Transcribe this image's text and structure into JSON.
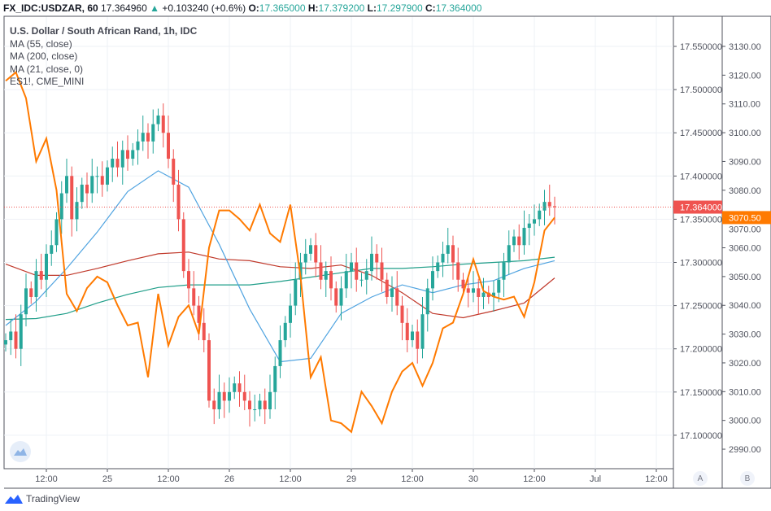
{
  "header": {
    "symbol": "FX_IDC:USDZAR, 60",
    "last": "17.364960",
    "change_arrow": "▲",
    "change": "+0.103240 (+0.6%)",
    "o_label": "O:",
    "o": "17.365000",
    "h_label": "H:",
    "h": "17.379200",
    "l_label": "L:",
    "l": "17.297900",
    "c_label": "C:",
    "c": "17.364000"
  },
  "legend": [
    "U.S. Dollar / South African Rand, 1h, IDC",
    "MA (55, close)",
    "MA (200, close)",
    "MA (21, close, 0)",
    "ES1!, CME_MINI"
  ],
  "scale_buttons": {
    "a": "A",
    "b": "B"
  },
  "footer": {
    "brand": "TradingView"
  },
  "colors": {
    "up": "#26a69a",
    "down": "#ef5350",
    "ma21": "#4fa3e0",
    "ma55": "#c0392b",
    "ma200": "#1f9e89",
    "es": "#ff7a00",
    "grid": "#eef1f6"
  },
  "chart_data": {
    "type": "candlestick",
    "symbol": "FX_IDC:USDZAR",
    "interval": "1h",
    "time_start": "Jun 24 04:00",
    "time_step_hours": 1,
    "x_ticks": [
      "12:00",
      "25",
      "12:00",
      "26",
      "12:00",
      "29",
      "12:00",
      "30",
      "12:00",
      "Jul",
      "12:00"
    ],
    "y_left_ticks": [
      "17.550000",
      "17.500000",
      "17.450000",
      "17.400000",
      "17.350000",
      "17.300000",
      "17.250000",
      "17.200000",
      "17.150000",
      "17.100000"
    ],
    "y_left_range": [
      17.08,
      17.57
    ],
    "y_right_ticks": [
      "3130.00",
      "3120.00",
      "3110.00",
      "3100.00",
      "3090.00",
      "3080.00",
      "3070.00",
      "3060.00",
      "3050.00",
      "3040.00",
      "3030.00",
      "3020.00",
      "3010.00",
      "3000.00",
      "2990.00"
    ],
    "y_right_range": [
      2985,
      3135
    ],
    "last_price_label": "17.364000",
    "es_last_label": "3070.50",
    "closes": [
      17.21,
      17.22,
      17.2,
      17.24,
      17.27,
      17.26,
      17.29,
      17.28,
      17.31,
      17.32,
      17.35,
      17.38,
      17.4,
      17.35,
      17.37,
      17.39,
      17.38,
      17.4,
      17.4,
      17.39,
      17.41,
      17.42,
      17.41,
      17.43,
      17.42,
      17.43,
      17.44,
      17.45,
      17.44,
      17.46,
      17.47,
      17.45,
      17.42,
      17.39,
      17.35,
      17.29,
      17.27,
      17.25,
      17.23,
      17.21,
      17.14,
      17.13,
      17.15,
      17.14,
      17.15,
      17.16,
      17.15,
      17.14,
      17.13,
      17.13,
      17.14,
      17.13,
      17.15,
      17.18,
      17.21,
      17.23,
      17.25,
      17.28,
      17.3,
      17.31,
      17.32,
      17.3,
      17.28,
      17.29,
      17.27,
      17.25,
      17.27,
      17.29,
      17.3,
      17.28,
      17.28,
      17.29,
      17.31,
      17.3,
      17.28,
      17.26,
      17.27,
      17.25,
      17.23,
      17.21,
      17.22,
      17.2,
      17.24,
      17.27,
      17.29,
      17.3,
      17.31,
      17.32,
      17.3,
      17.28,
      17.27,
      17.265,
      17.27,
      17.26,
      17.265,
      17.26,
      17.265,
      17.28,
      17.3,
      17.32,
      17.33,
      17.32,
      17.34,
      17.345,
      17.35,
      17.36,
      17.37,
      17.365,
      17.364
    ],
    "series": [
      {
        "name": "MA (21, close, 0)",
        "step_hours": 6,
        "values": [
          17.227,
          17.255,
          17.293,
          17.335,
          17.382,
          17.406,
          17.387,
          17.321,
          17.246,
          17.185,
          17.189,
          17.241,
          17.26,
          17.274,
          17.265,
          17.274,
          17.279,
          17.293,
          17.302
        ]
      },
      {
        "name": "MA (55, close)",
        "step_hours": 6,
        "values": [
          17.298,
          17.285,
          17.285,
          17.293,
          17.302,
          17.31,
          17.312,
          17.304,
          17.302,
          17.295,
          17.293,
          17.297,
          17.285,
          17.265,
          17.241,
          17.236,
          17.244,
          17.253,
          17.282
        ]
      },
      {
        "name": "MA (200, close)",
        "step_hours": 6,
        "values": [
          17.234,
          17.235,
          17.241,
          17.253,
          17.263,
          17.271,
          17.274,
          17.274,
          17.274,
          17.278,
          17.283,
          17.288,
          17.293,
          17.293,
          17.295,
          17.298,
          17.3,
          17.302,
          17.306
        ]
      },
      {
        "name": "ES1!, CME_MINI",
        "axis": "right",
        "step_hours": 2,
        "values": [
          3118,
          3121,
          3112,
          3090,
          3098,
          3080,
          3044,
          3038,
          3046,
          3050,
          3048,
          3040,
          3033,
          3034,
          3015,
          3044,
          3026,
          3036,
          3040,
          3030,
          3060,
          3073,
          3073,
          3070,
          3066,
          3075,
          3065,
          3062,
          3075,
          3050,
          3015,
          3022,
          3000,
          2999,
          2996,
          3010,
          3005,
          2999,
          3010,
          3017,
          3020,
          3012,
          3020,
          3032,
          3034,
          3044,
          3056,
          3045,
          3043,
          3042,
          3043,
          3036,
          3048,
          3066,
          3070.5
        ]
      }
    ]
  }
}
